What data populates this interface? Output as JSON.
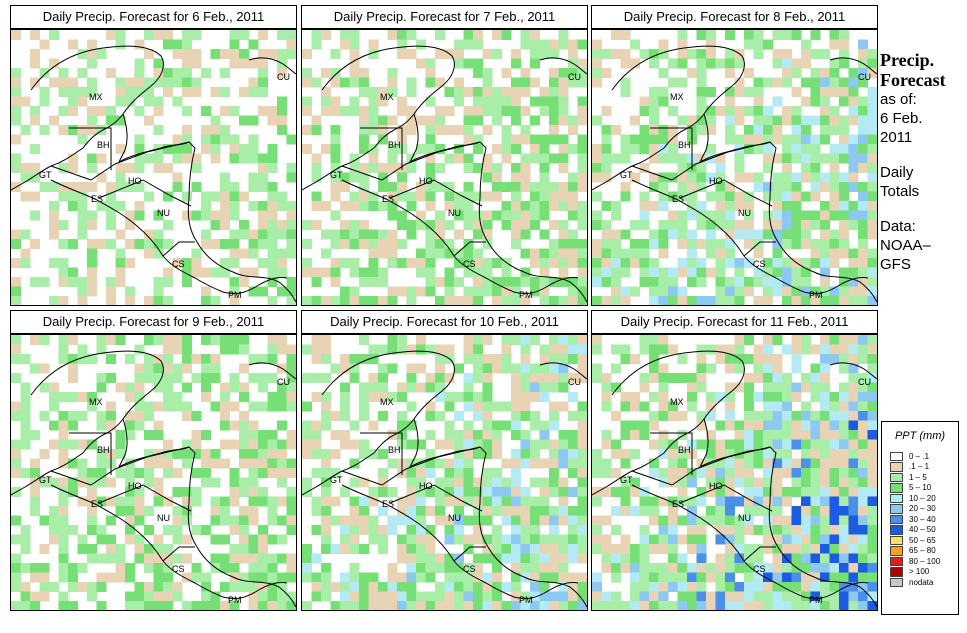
{
  "side": {
    "heading_line1": "Precip.",
    "heading_line2": "Forecast",
    "asof_line1": "as of:",
    "asof_line2": "6 Feb.",
    "asof_line3": "2011",
    "totals_line1": "Daily",
    "totals_line2": "Totals",
    "source_line1": "Data:",
    "source_line2": "NOAA–",
    "source_line3": "GFS"
  },
  "panels": [
    {
      "title": "Daily Precip. Forecast for  6 Feb., 2011",
      "intensity": 1
    },
    {
      "title": "Daily Precip. Forecast for  7 Feb., 2011",
      "intensity": 2
    },
    {
      "title": "Daily Precip. Forecast for  8 Feb., 2011",
      "intensity": 3
    },
    {
      "title": "Daily Precip. Forecast for  9 Feb., 2011",
      "intensity": 2
    },
    {
      "title": "Daily Precip. Forecast for  10 Feb., 2011",
      "intensity": 3
    },
    {
      "title": "Daily Precip. Forecast for  11 Feb., 2011",
      "intensity": 4
    }
  ],
  "country_labels": [
    "MX",
    "BH",
    "GT",
    "HO",
    "ES",
    "NU",
    "CS",
    "PM",
    "CU"
  ],
  "legend": {
    "title": "PPT (mm)",
    "classes": [
      {
        "label": "0 – .1",
        "color": "#ffffff"
      },
      {
        "label": ".1 – 1",
        "color": "#e8d4b4"
      },
      {
        "label": "1 – 5",
        "color": "#a8eea8"
      },
      {
        "label": "5 – 10",
        "color": "#76e076"
      },
      {
        "label": "10 – 20",
        "color": "#b4eaf4"
      },
      {
        "label": "20 – 30",
        "color": "#8cc8f0"
      },
      {
        "label": "30 – 40",
        "color": "#4a90e8"
      },
      {
        "label": "40 – 50",
        "color": "#1c5ce0"
      },
      {
        "label": "50 – 65",
        "color": "#f8e070"
      },
      {
        "label": "65 – 80",
        "color": "#f8a020"
      },
      {
        "label": "80 – 100",
        "color": "#e02010"
      },
      {
        "label": "> 100",
        "color": "#b00000"
      },
      {
        "label": "nodata",
        "color": "#c8c8c8"
      }
    ]
  }
}
